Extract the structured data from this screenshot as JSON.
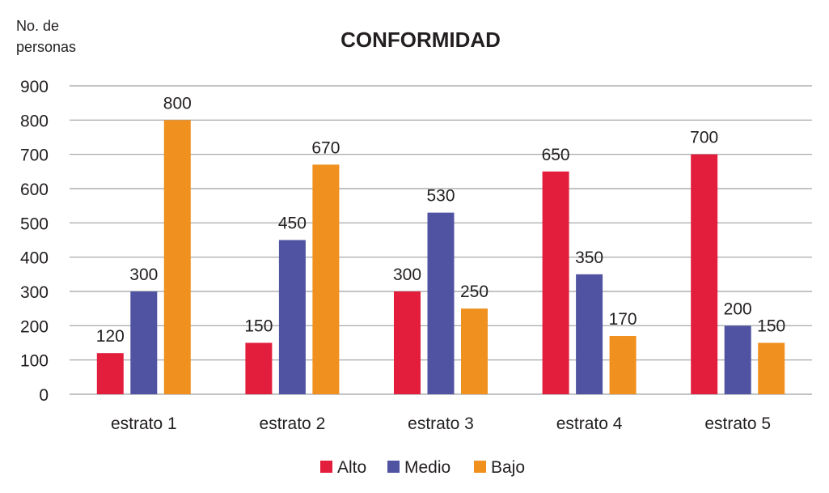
{
  "chart_data": {
    "type": "bar",
    "title": "CONFORMIDAD",
    "ylabel_line1": "No. de",
    "ylabel_line2": "personas",
    "xlabel": "",
    "ylim": [
      0,
      900
    ],
    "yticks": [
      0,
      100,
      200,
      300,
      400,
      500,
      600,
      700,
      800,
      900
    ],
    "grid": true,
    "legend_position": "bottom-center",
    "categories": [
      "estrato 1",
      "estrato 2",
      "estrato 3",
      "estrato 4",
      "estrato 5"
    ],
    "series": [
      {
        "name": "Alto",
        "color": "#e31e3c",
        "values": [
          120,
          150,
          300,
          650,
          700
        ]
      },
      {
        "name": "Medio",
        "color": "#5053a2",
        "values": [
          300,
          450,
          530,
          350,
          200
        ]
      },
      {
        "name": "Bajo",
        "color": "#f0901e",
        "values": [
          800,
          670,
          250,
          170,
          150
        ]
      }
    ]
  }
}
